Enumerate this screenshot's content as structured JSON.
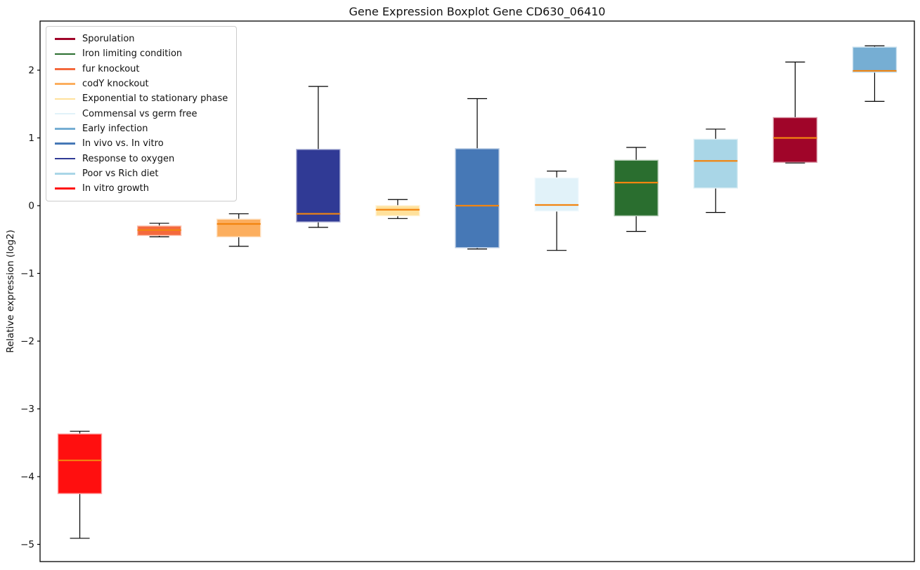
{
  "chart_data": {
    "type": "boxplot",
    "title": "Gene Expression Boxplot Gene CD630_06410",
    "xlabel": "",
    "ylabel": "Relative expression (log2)",
    "ylim": [
      -5.254,
      2.725
    ],
    "grid": false,
    "legend_position": "upper left",
    "x_tick_labels": [],
    "yticks": [
      {
        "value": 2,
        "label": "2"
      },
      {
        "value": 1,
        "label": "1"
      },
      {
        "value": 0,
        "label": "0"
      },
      {
        "value": -1,
        "label": "−1"
      },
      {
        "value": -2,
        "label": "−2"
      },
      {
        "value": -3,
        "label": "−3"
      },
      {
        "value": -4,
        "label": "−4"
      },
      {
        "value": -5,
        "label": "−5"
      }
    ],
    "legend": [
      {
        "label": "Sporulation",
        "color": "#a00529"
      },
      {
        "label": "Iron limiting condition",
        "color": "#2a6e2f"
      },
      {
        "label": "fur knockout",
        "color": "#f4693d"
      },
      {
        "label": "codY knockout",
        "color": "#fcae5e"
      },
      {
        "label": "Exponential to stationary phase",
        "color": "#ffe19b"
      },
      {
        "label": "Commensal vs germ free",
        "color": "#e1f2f9"
      },
      {
        "label": "Early infection",
        "color": "#76aed3"
      },
      {
        "label": "In vivo vs. In vitro",
        "color": "#4678b6"
      },
      {
        "label": "Response to oxygen",
        "color": "#303a95"
      },
      {
        "label": "Poor vs Rich diet",
        "color": "#a9d6e7"
      },
      {
        "label": "In vitro growth",
        "color": "#ff0f0f"
      }
    ],
    "boxes": [
      {
        "name": "In vitro growth",
        "color": "#ff0f0f",
        "whisker_low": -4.91,
        "q1": -4.25,
        "median": -3.76,
        "q3": -3.37,
        "whisker_high": -3.33
      },
      {
        "name": "fur knockout",
        "color": "#f4693d",
        "whisker_low": -0.46,
        "q1": -0.44,
        "median": -0.36,
        "q3": -0.3,
        "whisker_high": -0.26
      },
      {
        "name": "codY knockout",
        "color": "#fcae5e",
        "whisker_low": -0.6,
        "q1": -0.46,
        "median": -0.27,
        "q3": -0.2,
        "whisker_high": -0.12
      },
      {
        "name": "Response to oxygen",
        "color": "#303a95",
        "whisker_low": -0.32,
        "q1": -0.24,
        "median": -0.12,
        "q3": 0.83,
        "whisker_high": 1.76
      },
      {
        "name": "Exponential to stationary phase",
        "color": "#ffe19b",
        "whisker_low": -0.19,
        "q1": -0.15,
        "median": -0.06,
        "q3": 0.0,
        "whisker_high": 0.09
      },
      {
        "name": "In vivo vs. In vitro",
        "color": "#4678b6",
        "whisker_low": -0.64,
        "q1": -0.62,
        "median": 0.0,
        "q3": 0.84,
        "whisker_high": 1.58
      },
      {
        "name": "Commensal vs germ free",
        "color": "#e1f2f9",
        "whisker_low": -0.66,
        "q1": -0.08,
        "median": 0.01,
        "q3": 0.41,
        "whisker_high": 0.51
      },
      {
        "name": "Iron limiting condition",
        "color": "#2a6e2f",
        "whisker_low": -0.38,
        "q1": -0.15,
        "median": 0.34,
        "q3": 0.67,
        "whisker_high": 0.86
      },
      {
        "name": "Poor vs Rich diet",
        "color": "#a9d6e7",
        "whisker_low": -0.1,
        "q1": 0.26,
        "median": 0.66,
        "q3": 0.98,
        "whisker_high": 1.13
      },
      {
        "name": "Sporulation",
        "color": "#a00529",
        "whisker_low": 0.63,
        "q1": 0.64,
        "median": 1.0,
        "q3": 1.3,
        "whisker_high": 2.12
      },
      {
        "name": "Early infection",
        "color": "#76aed3",
        "whisker_low": 1.54,
        "q1": 1.97,
        "median": 1.99,
        "q3": 2.34,
        "whisker_high": 2.36
      }
    ],
    "style_colors": {
      "median_line": "#f28510",
      "whisker": "#000000",
      "spine": "#000000",
      "legend_border": "#cccccc"
    }
  }
}
